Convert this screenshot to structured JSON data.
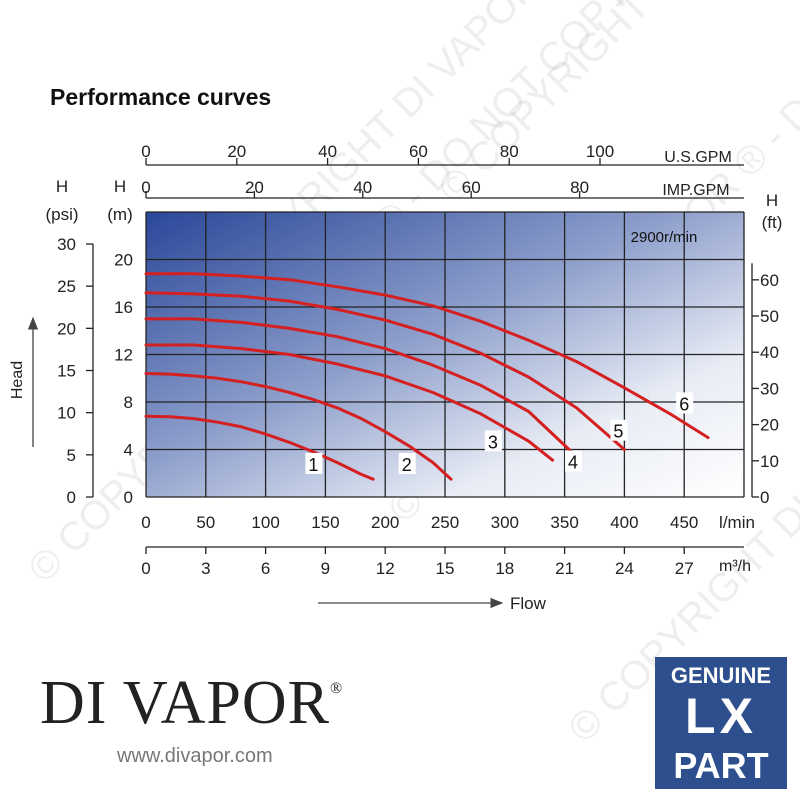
{
  "title": "Performance curves",
  "brand": {
    "name": "DI VAPOR",
    "mark": "®",
    "url": "www.divapor.com"
  },
  "badge": {
    "line1": "GENUINE",
    "line2": "LX",
    "line3": "PART"
  },
  "watermark": "© COPYRIGHT DI VAPOR ® - DO NOT COPY -",
  "chart_data": {
    "type": "line",
    "annotation": "2900r/min",
    "x_primary": {
      "label": "l/min",
      "ticks": [
        0,
        50,
        100,
        150,
        200,
        250,
        300,
        350,
        400,
        450
      ],
      "range": [
        0,
        500
      ]
    },
    "x_m3h": {
      "label": "m³/h",
      "ticks": [
        0,
        3,
        6,
        9,
        12,
        15,
        18,
        21,
        24,
        27
      ],
      "range": [
        0,
        30
      ]
    },
    "x_usgpm": {
      "label": "U.S.GPM",
      "ticks": [
        0,
        20,
        40,
        60,
        80,
        100
      ]
    },
    "x_impgpm": {
      "label": "IMP.GPM",
      "ticks": [
        0,
        20,
        40,
        60,
        80
      ]
    },
    "y_m": {
      "label_top": "H",
      "label_unit": "(m)",
      "ticks": [
        0,
        4,
        8,
        12,
        16,
        20
      ],
      "range": [
        0,
        24
      ]
    },
    "y_psi": {
      "label_top": "H",
      "label_unit": "(psi)",
      "ticks": [
        0,
        5,
        10,
        15,
        20,
        25,
        30
      ]
    },
    "y_ft": {
      "label_top": "H",
      "label_unit": "(ft)",
      "ticks": [
        0,
        10,
        20,
        30,
        40,
        50,
        60
      ]
    },
    "head_label": "Head",
    "flow_label": "Flow",
    "grid": true,
    "series": [
      {
        "name": "1",
        "x": [
          0,
          20,
          40,
          60,
          80,
          100,
          120,
          140,
          160,
          180,
          190
        ],
        "y": [
          6.8,
          6.75,
          6.6,
          6.3,
          5.9,
          5.3,
          4.6,
          3.8,
          2.9,
          1.9,
          1.5
        ]
      },
      {
        "name": "2",
        "x": [
          0,
          20,
          40,
          60,
          80,
          100,
          120,
          140,
          160,
          180,
          200,
          220,
          240,
          255
        ],
        "y": [
          10.4,
          10.35,
          10.2,
          10.0,
          9.7,
          9.3,
          8.8,
          8.2,
          7.5,
          6.6,
          5.5,
          4.3,
          2.9,
          1.5
        ]
      },
      {
        "name": "3",
        "x": [
          0,
          40,
          80,
          120,
          160,
          200,
          240,
          280,
          320,
          340
        ],
        "y": [
          12.8,
          12.8,
          12.5,
          12.0,
          11.2,
          10.2,
          8.8,
          7.0,
          4.7,
          3.1
        ]
      },
      {
        "name": "4",
        "x": [
          0,
          40,
          80,
          120,
          160,
          200,
          240,
          280,
          320,
          360
        ],
        "y": [
          15.0,
          15.0,
          14.7,
          14.2,
          13.5,
          12.5,
          11.1,
          9.4,
          7.2,
          3.4
        ]
      },
      {
        "name": "5",
        "x": [
          0,
          40,
          80,
          120,
          160,
          200,
          240,
          280,
          320,
          360,
          400
        ],
        "y": [
          17.2,
          17.1,
          16.9,
          16.5,
          15.8,
          14.9,
          13.7,
          12.1,
          10.1,
          7.5,
          4.0
        ]
      },
      {
        "name": "6",
        "x": [
          0,
          40,
          80,
          120,
          160,
          200,
          240,
          280,
          320,
          360,
          400,
          440,
          470
        ],
        "y": [
          18.8,
          18.8,
          18.6,
          18.3,
          17.7,
          17.0,
          16.1,
          14.8,
          13.2,
          11.4,
          9.2,
          6.9,
          5.0
        ]
      }
    ],
    "label_positions": [
      {
        "name": "1",
        "x": 140,
        "y": 2.7
      },
      {
        "name": "2",
        "x": 218,
        "y": 2.7
      },
      {
        "name": "3",
        "x": 290,
        "y": 4.6
      },
      {
        "name": "4",
        "x": 357,
        "y": 2.9
      },
      {
        "name": "5",
        "x": 395,
        "y": 5.5
      },
      {
        "name": "6",
        "x": 450,
        "y": 7.8
      }
    ]
  }
}
